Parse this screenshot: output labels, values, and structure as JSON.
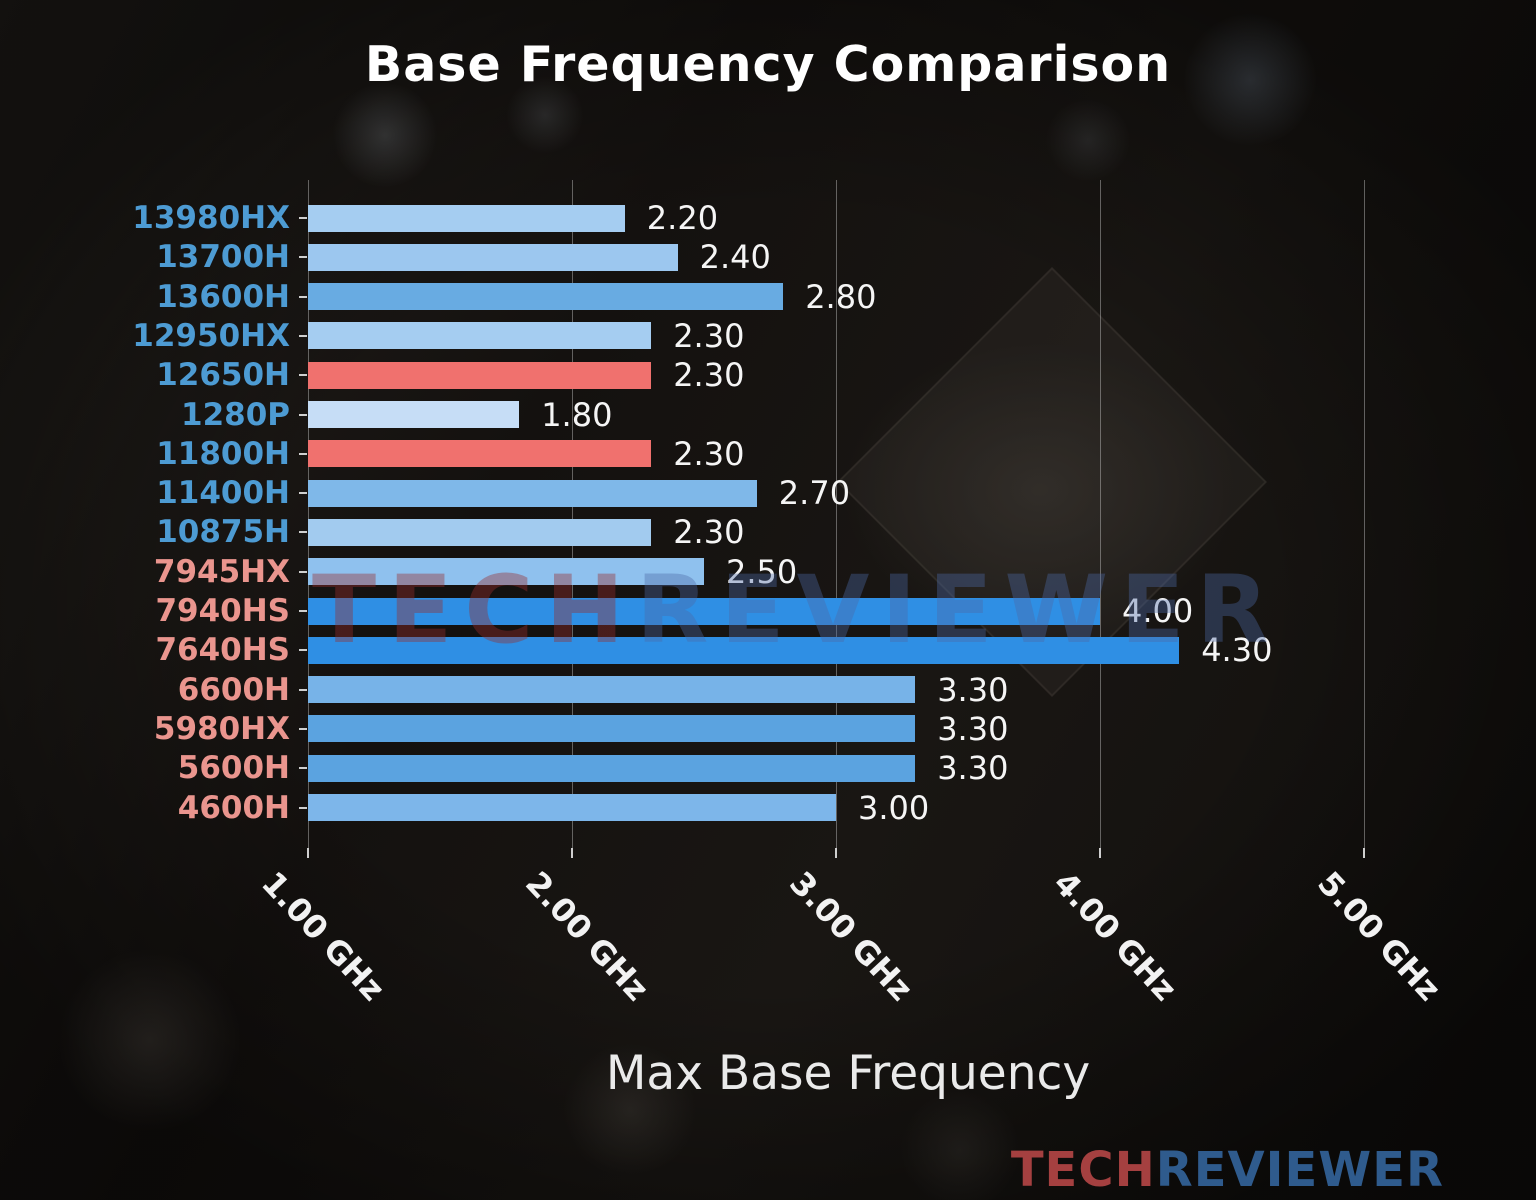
{
  "title": "Base Frequency Comparison",
  "watermark": {
    "tech": "TECH",
    "reviewer": "REVIEWER"
  },
  "logo": {
    "tech": "TECH",
    "reviewer": "REVIEWER"
  },
  "chart_data": {
    "type": "bar",
    "orientation": "horizontal",
    "title": "Base Frequency Comparison",
    "xlabel": "Max Base Frequency",
    "grid": true,
    "x_axis": {
      "tick_labels": [
        "1.00 GHz",
        "2.00 GHz",
        "3.00 GHz",
        "4.00 GHz",
        "5.00 GHz"
      ],
      "tick_values_ghz": [
        1.0,
        2.0,
        3.0,
        4.0,
        5.0
      ],
      "range_ghz": [
        1.0,
        5.5
      ]
    },
    "bars": [
      {
        "label": "13980HX",
        "value": 2.2,
        "value_label": "2.20",
        "bar_color": "#a5cdf1",
        "label_color": "#4d9bd3"
      },
      {
        "label": "13700H",
        "value": 2.4,
        "value_label": "2.40",
        "bar_color": "#9cc7ef",
        "label_color": "#4d9bd3"
      },
      {
        "label": "13600H",
        "value": 2.8,
        "value_label": "2.80",
        "bar_color": "#68abe2",
        "label_color": "#4d9bd3"
      },
      {
        "label": "12950HX",
        "value": 2.3,
        "value_label": "2.30",
        "bar_color": "#a5cdf1",
        "label_color": "#4d9bd3"
      },
      {
        "label": "12650H",
        "value": 2.3,
        "value_label": "2.30",
        "bar_color": "#f0716e",
        "label_color": "#4d9bd3"
      },
      {
        "label": "1280P",
        "value": 1.8,
        "value_label": "1.80",
        "bar_color": "#c6ddf6",
        "label_color": "#4d9bd3"
      },
      {
        "label": "11800H",
        "value": 2.3,
        "value_label": "2.30",
        "bar_color": "#f0716e",
        "label_color": "#4d9bd3"
      },
      {
        "label": "11400H",
        "value": 2.7,
        "value_label": "2.70",
        "bar_color": "#7fb8e9",
        "label_color": "#4d9bd3"
      },
      {
        "label": "10875H",
        "value": 2.3,
        "value_label": "2.30",
        "bar_color": "#a2cbef",
        "label_color": "#4d9bd3"
      },
      {
        "label": "7945HX",
        "value": 2.5,
        "value_label": "2.50",
        "bar_color": "#8fc1ee",
        "label_color": "#ea958e"
      },
      {
        "label": "7940HS",
        "value": 4.0,
        "value_label": "4.00",
        "bar_color": "#2f8fe4",
        "label_color": "#ea958e"
      },
      {
        "label": "7640HS",
        "value": 4.3,
        "value_label": "4.30",
        "bar_color": "#2f8fe4",
        "label_color": "#ea958e"
      },
      {
        "label": "6600H",
        "value": 3.3,
        "value_label": "3.30",
        "bar_color": "#77b3e8",
        "label_color": "#ea958e"
      },
      {
        "label": "5980HX",
        "value": 3.3,
        "value_label": "3.30",
        "bar_color": "#5ba3e0",
        "label_color": "#ea958e"
      },
      {
        "label": "5600H",
        "value": 3.3,
        "value_label": "3.30",
        "bar_color": "#5ba3e0",
        "label_color": "#ea958e"
      },
      {
        "label": "4600H",
        "value": 3.0,
        "value_label": "3.00",
        "bar_color": "#7db6ea",
        "label_color": "#ea958e"
      }
    ]
  }
}
